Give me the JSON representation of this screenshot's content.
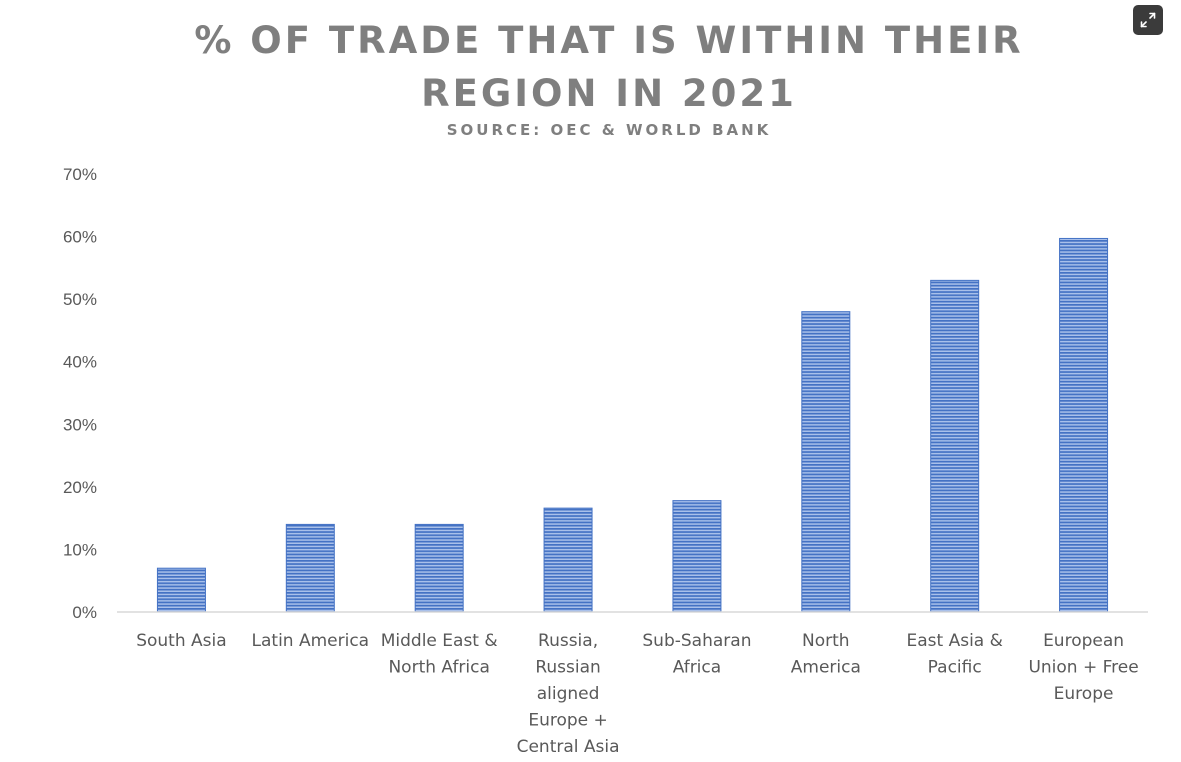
{
  "chart_data": {
    "type": "bar",
    "title": "% OF TRADE THAT IS WITHIN THEIR REGION IN 2021",
    "title_lines": [
      "% OF TRADE THAT IS WITHIN THEIR",
      "REGION IN 2021"
    ],
    "subtitle": "SOURCE: OEC & WORLD BANK",
    "xlabel": "",
    "ylabel": "",
    "ylim": [
      0,
      70
    ],
    "ytick_step": 10,
    "y_format": "percent",
    "ytick_labels": [
      "0%",
      "10%",
      "20%",
      "30%",
      "40%",
      "50%",
      "60%",
      "70%"
    ],
    "grid": false,
    "legend": "none",
    "bar_color": "#4472c4",
    "bar_stripe_color": "#a9c0ea",
    "categories": [
      "South Asia",
      "Latin America",
      "Middle East & North Africa",
      "Russia, Russian aligned Europe + Central Asia",
      "Sub-Saharan Africa",
      "North America",
      "East Asia & Pacific",
      "European Union + Free Europe"
    ],
    "category_label_lines": [
      [
        "South Asia"
      ],
      [
        "Latin America"
      ],
      [
        "Middle East &",
        "North Africa"
      ],
      [
        "Russia,",
        "Russian",
        "aligned",
        "Europe +",
        "Central Asia"
      ],
      [
        "Sub-Saharan",
        "Africa"
      ],
      [
        "North",
        "America"
      ],
      [
        "East Asia &",
        "Pacific"
      ],
      [
        "European",
        "Union + Free",
        "Europe"
      ]
    ],
    "values": [
      7,
      14,
      14,
      16.6,
      17.8,
      48,
      53,
      59.7
    ]
  },
  "toolbar": {
    "expand_icon": "expand-icon"
  }
}
